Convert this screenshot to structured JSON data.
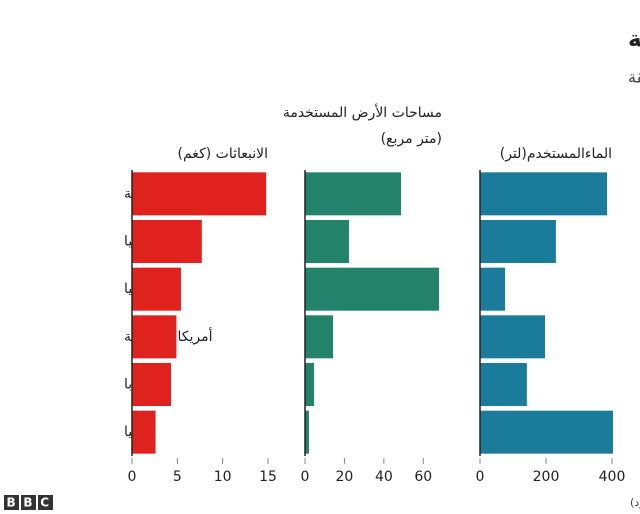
{
  "title": "التأثير البيئي للحوم البقر أعلى في أمريكا اللاتينية",
  "subtitle": "التأثير البيئي لوجبة واحدة من لحم البقر حسب المنطقة",
  "source": "المصدر: بور (جامعة أوكسفورد)",
  "logo": "BBC",
  "categories": [
    "أمريكا اللاتينية",
    "إفريقيا",
    "أوقيانوسيا",
    "أمريكا الشمالية",
    "أوروبا",
    "آسيا"
  ],
  "chart_data": [
    {
      "type": "bar",
      "x_label": "الانبعاثات (كغم)",
      "color": "#e0221f",
      "values": [
        14.8,
        7.7,
        5.4,
        4.9,
        4.3,
        2.6
      ],
      "xlim": [
        0,
        15
      ],
      "xticks": [
        0,
        5,
        10,
        15
      ]
    },
    {
      "type": "bar",
      "x_label": "مساحات الأرض المستخدمة (متر مربع)",
      "color": "#22836a",
      "values": [
        48.7,
        22.3,
        68,
        14.2,
        4.6,
        2
      ],
      "xlim": [
        0,
        70
      ],
      "xticks": [
        0,
        20,
        40,
        60
      ]
    },
    {
      "type": "bar",
      "x_label": "الماءالمستخدم(لتر)",
      "color": "#1a7b9b",
      "values": [
        385,
        230,
        76,
        197,
        142,
        403
      ],
      "xlim": [
        0,
        400
      ],
      "xticks": [
        0,
        200,
        400
      ]
    }
  ]
}
